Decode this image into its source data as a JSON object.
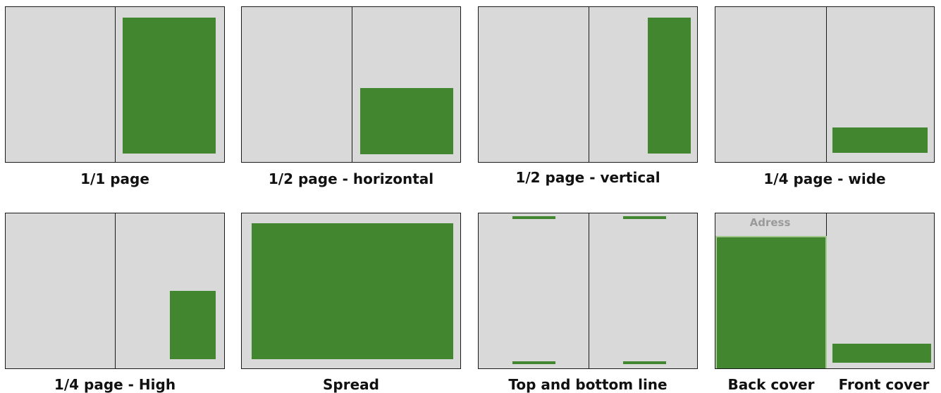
{
  "ad_color": "#428630",
  "page_color": "#d9d9d9",
  "formats": [
    {
      "id": "full-page",
      "caption": "1/1 page"
    },
    {
      "id": "half-page-horizontal",
      "caption": "1/2 page - horizontal"
    },
    {
      "id": "half-page-vertical",
      "caption": "1/2 page - vertical"
    },
    {
      "id": "quarter-page-wide",
      "caption": "1/4 page - wide"
    },
    {
      "id": "quarter-page-high",
      "caption": "1/4 page - High"
    },
    {
      "id": "spread",
      "caption": "Spread"
    },
    {
      "id": "top-bottom-line",
      "caption": "Top and bottom line"
    },
    {
      "id": "covers",
      "address_label": "Adress",
      "caption_back": "Back cover",
      "caption_front": "Front cover"
    }
  ]
}
